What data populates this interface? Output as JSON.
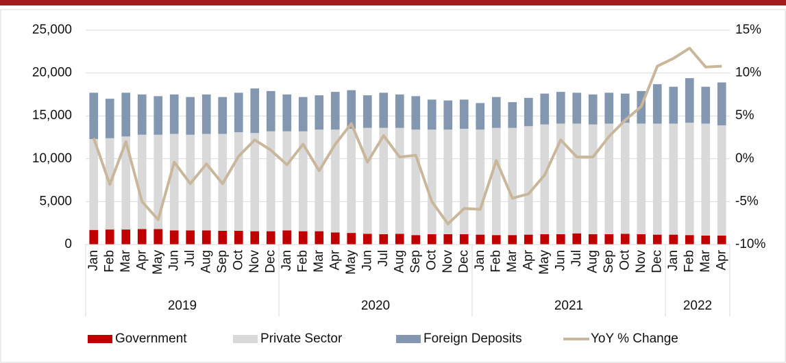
{
  "chart_data": {
    "type": "bar_line",
    "categories": [
      "Jan",
      "Feb",
      "Mar",
      "Apr",
      "May",
      "Jun",
      "Jul",
      "Aug",
      "Sep",
      "Oct",
      "Nov",
      "Dec",
      "Jan",
      "Feb",
      "Mar",
      "Apr",
      "May",
      "Jun",
      "Jul",
      "Aug",
      "Sep",
      "Oct",
      "Nov",
      "Dec",
      "Jan",
      "Feb",
      "Mar",
      "Apr",
      "May",
      "Jun",
      "Jul",
      "Aug",
      "Sep",
      "Oct",
      "Nov",
      "Dec",
      "Jan",
      "Feb",
      "Mar",
      "Apr"
    ],
    "years": [
      "2019",
      "2020",
      "2021",
      "2022"
    ],
    "series": [
      {
        "name": "Government",
        "color": "#c00000",
        "values": [
          1700,
          1750,
          1750,
          1800,
          1800,
          1650,
          1650,
          1650,
          1600,
          1600,
          1550,
          1550,
          1650,
          1550,
          1550,
          1400,
          1350,
          1250,
          1200,
          1250,
          1100,
          1200,
          1200,
          1200,
          1150,
          1100,
          1100,
          1150,
          1200,
          1200,
          1300,
          1200,
          1200,
          1250,
          1200,
          1150,
          1150,
          1100,
          1050,
          1050
        ]
      },
      {
        "name": "Private Sector",
        "color": "#d9d9d9",
        "values": [
          10600,
          10650,
          10850,
          11000,
          11000,
          11250,
          11150,
          11250,
          11300,
          11500,
          11450,
          11650,
          11550,
          11650,
          11850,
          12000,
          12150,
          12350,
          12400,
          12350,
          12300,
          12200,
          12200,
          12300,
          12250,
          12500,
          12500,
          12650,
          12800,
          12900,
          12800,
          12800,
          12900,
          12950,
          12900,
          12950,
          12950,
          13100,
          13050,
          12850
        ]
      },
      {
        "name": "Foreign Deposits",
        "color": "#8497b0",
        "values": [
          5400,
          4600,
          5100,
          4700,
          4500,
          4600,
          4400,
          4600,
          4300,
          4600,
          5200,
          4700,
          4300,
          4000,
          4000,
          4400,
          4500,
          3800,
          4100,
          3900,
          3900,
          3500,
          3400,
          3400,
          3100,
          3600,
          3000,
          3300,
          3600,
          3700,
          3600,
          3500,
          3600,
          3400,
          3800,
          4600,
          4300,
          5200,
          4300,
          5000
        ]
      },
      {
        "name": "YoY % Change",
        "color": "#c9b79c",
        "axis": "y2",
        "values": [
          2.4,
          -3.0,
          2.0,
          -5.0,
          -7.1,
          -0.4,
          -2.9,
          -0.6,
          -2.9,
          0.3,
          2.2,
          1.0,
          -0.7,
          1.7,
          -1.4,
          1.7,
          4.1,
          -0.4,
          2.7,
          0.2,
          0.4,
          -5.0,
          -7.6,
          -5.8,
          -5.9,
          -0.2,
          -4.6,
          -4.1,
          -1.9,
          2.2,
          0.2,
          0.2,
          2.6,
          4.5,
          6.1,
          10.8,
          11.7,
          12.9,
          10.7,
          10.8
        ]
      }
    ],
    "ylim": [
      0,
      25000
    ],
    "yticks": [
      0,
      {
        "value": 5000,
        "label": "5,000"
      },
      {
        "value": 10000,
        "label": "10,000"
      },
      {
        "value": 15000,
        "label": "15,000"
      },
      {
        "value": 20000,
        "label": "20,000"
      },
      {
        "value": 25000,
        "label": "25,000"
      }
    ],
    "y2lim": [
      -10,
      15
    ],
    "y2ticks": [
      {
        "value": -10,
        "label": "-10%"
      },
      {
        "value": -5,
        "label": "-5%"
      },
      {
        "value": 0,
        "label": "0%"
      },
      {
        "value": 5,
        "label": "5%"
      },
      {
        "value": 10,
        "label": "10%"
      },
      {
        "value": 15,
        "label": "15%"
      }
    ],
    "grid": true,
    "legend": "bottom"
  }
}
